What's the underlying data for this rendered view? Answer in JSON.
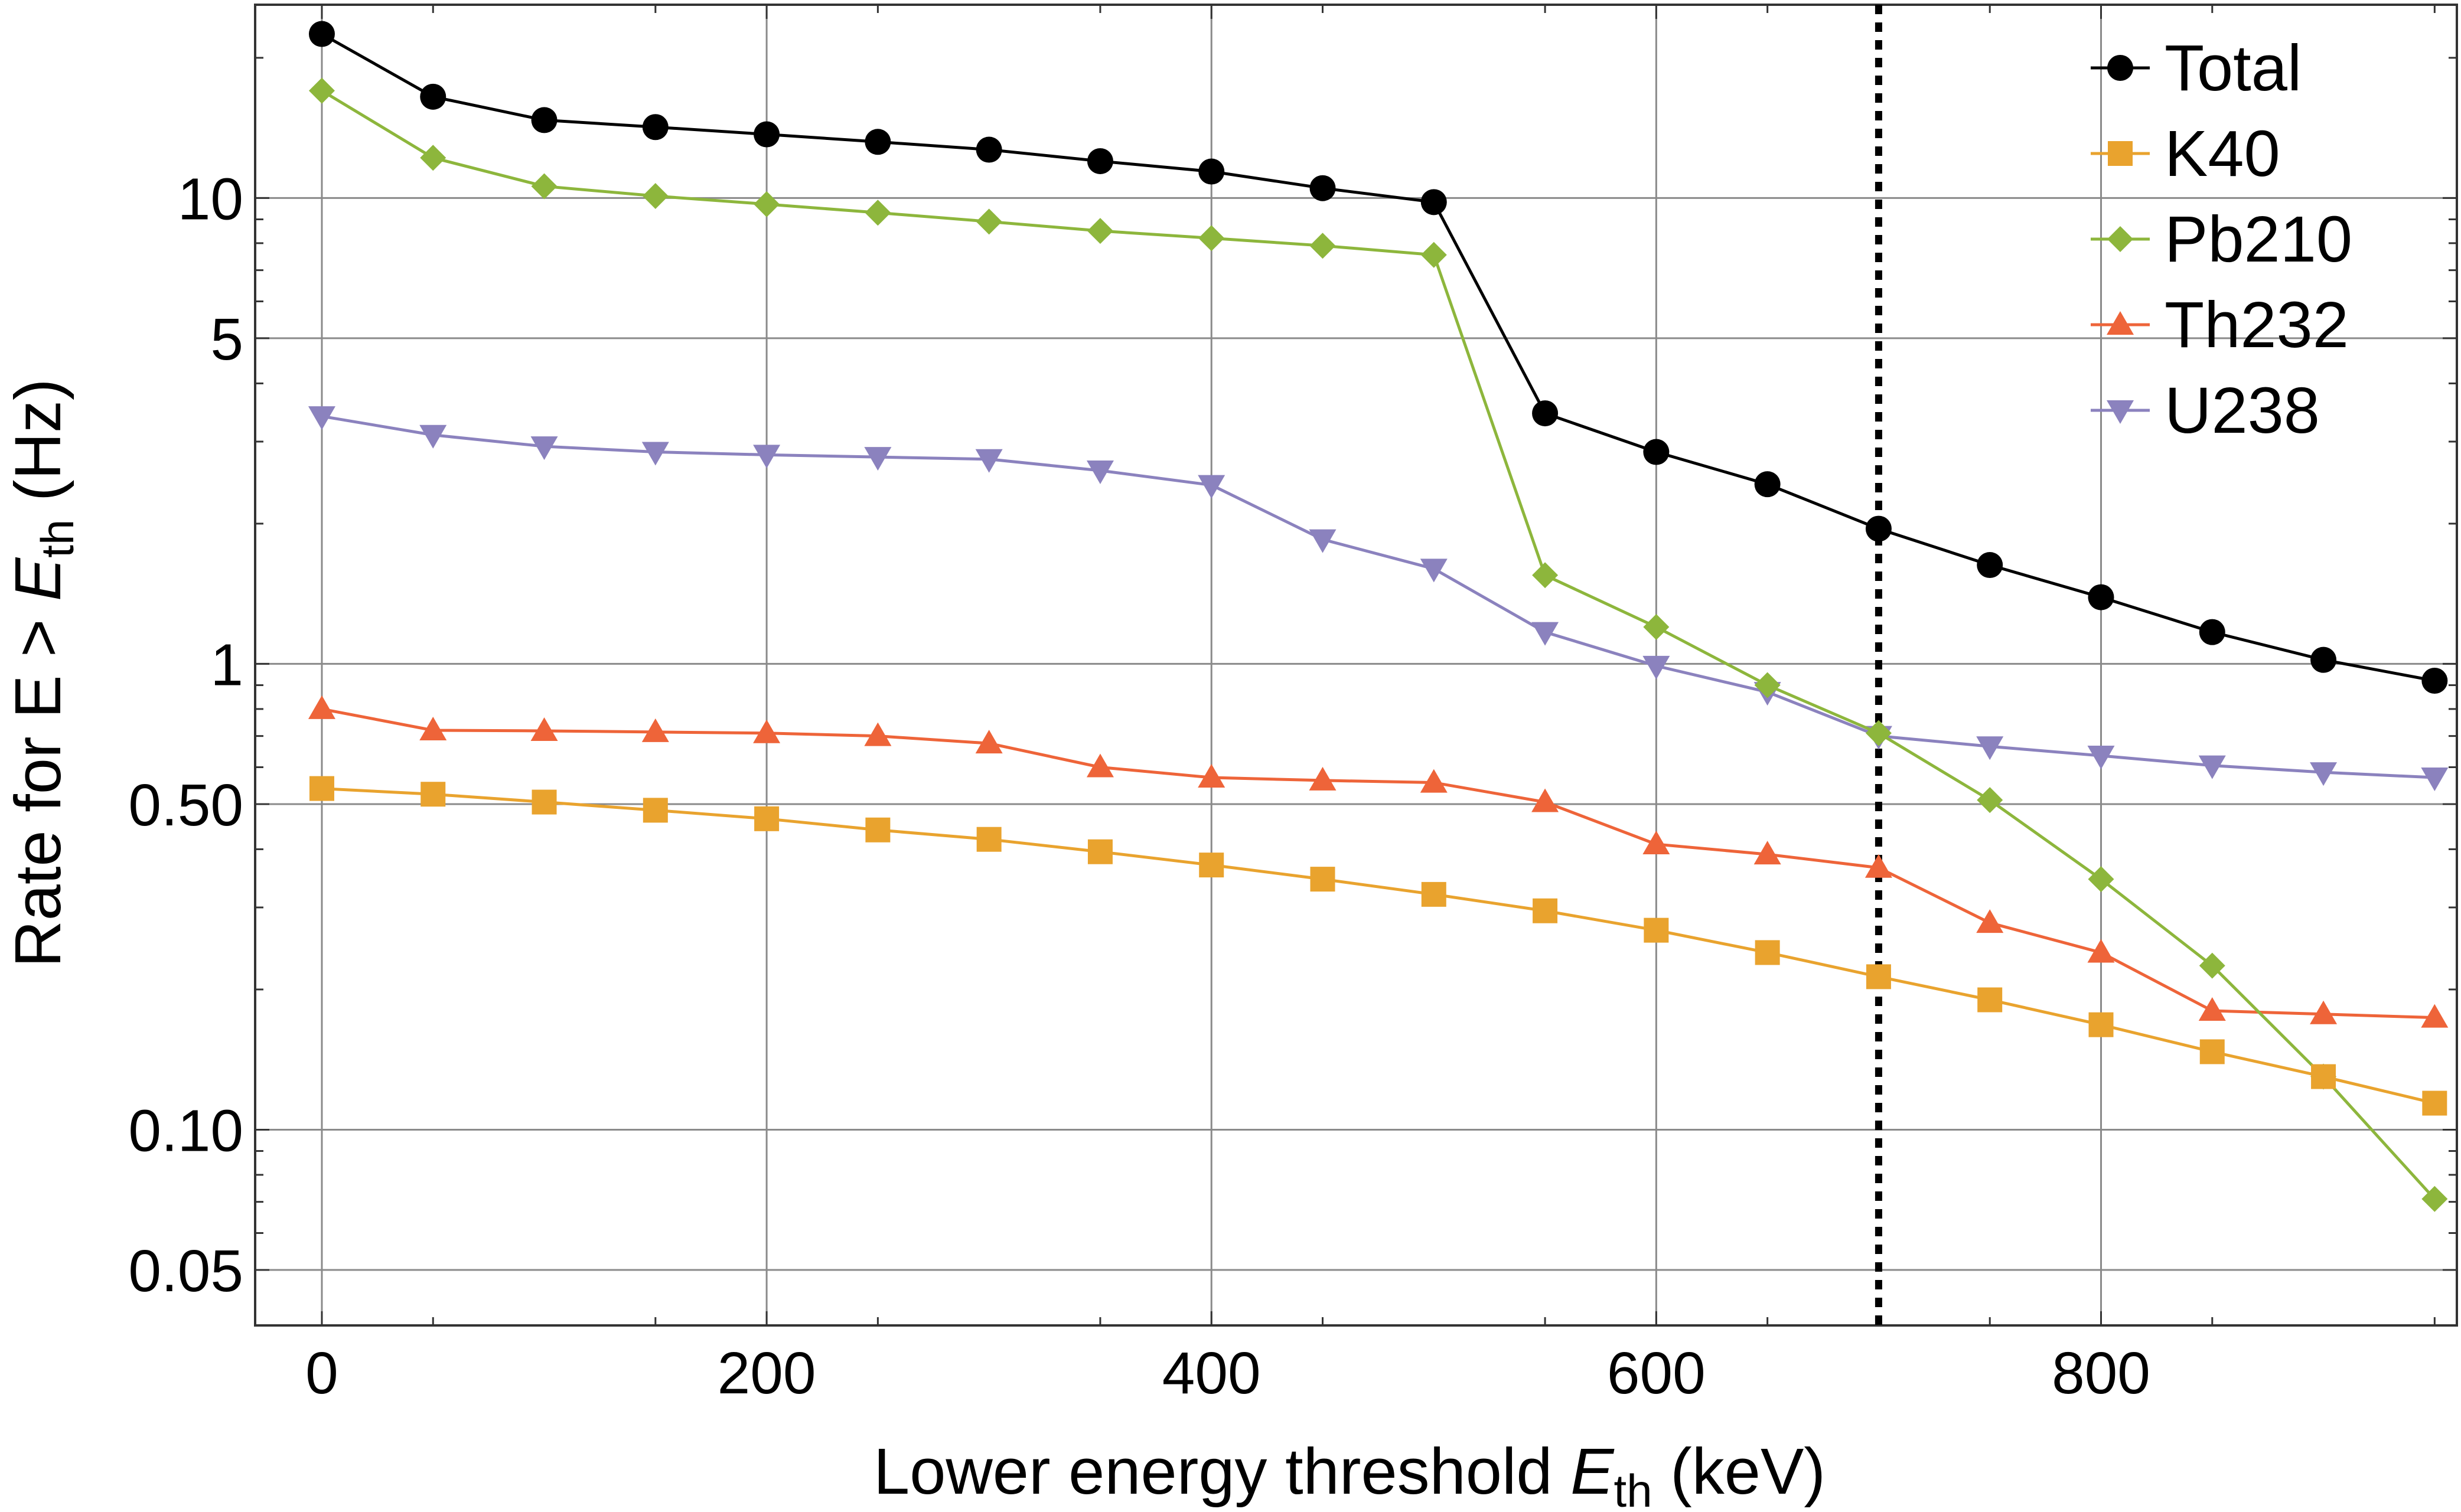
{
  "chart_data": {
    "type": "line",
    "title": "",
    "xlabel": {
      "prefix": "Lower energy threshold ",
      "var": "E",
      "sub": "th",
      "suffix": " (keV)"
    },
    "ylabel": {
      "prefix": "Rate for E > ",
      "var": "E",
      "sub": "th",
      "suffix": " (Hz)"
    },
    "xlim": [
      -30,
      960
    ],
    "ylim": [
      0.038,
      26
    ],
    "yscale": "log",
    "grid": true,
    "legend_position": "top-right",
    "x_ticks": [
      {
        "value": 0,
        "label": "0"
      },
      {
        "value": 200,
        "label": "200"
      },
      {
        "value": 400,
        "label": "400"
      },
      {
        "value": 600,
        "label": "600"
      },
      {
        "value": 800,
        "label": "800"
      }
    ],
    "y_ticks": [
      {
        "value": 0.05,
        "label": "0.05"
      },
      {
        "value": 0.1,
        "label": "0.10"
      },
      {
        "value": 0.5,
        "label": "0.50"
      },
      {
        "value": 1,
        "label": "1"
      },
      {
        "value": 5,
        "label": "5"
      },
      {
        "value": 10,
        "label": "10"
      }
    ],
    "threshold_line": {
      "x": 700,
      "style": "dotted"
    },
    "x": [
      0,
      50,
      100,
      150,
      200,
      250,
      300,
      350,
      400,
      450,
      500,
      550,
      600,
      650,
      700,
      750,
      800,
      850,
      900,
      950
    ],
    "series": [
      {
        "name": "Total",
        "color": "#000000",
        "marker": "circle",
        "values": [
          22.5,
          16.5,
          14.7,
          14.2,
          13.7,
          13.2,
          12.7,
          12.0,
          11.4,
          10.5,
          9.8,
          3.45,
          2.85,
          2.43,
          1.95,
          1.63,
          1.39,
          1.17,
          1.02,
          0.92
        ]
      },
      {
        "name": "K40",
        "color": "#E9A32E",
        "marker": "square",
        "values": [
          0.54,
          0.525,
          0.505,
          0.485,
          0.465,
          0.44,
          0.42,
          0.395,
          0.37,
          0.345,
          0.32,
          0.295,
          0.268,
          0.24,
          0.213,
          0.19,
          0.168,
          0.147,
          0.13,
          0.114
        ]
      },
      {
        "name": "Pb210",
        "color": "#8DB63C",
        "marker": "diamond",
        "values": [
          17.0,
          12.2,
          10.6,
          10.1,
          9.7,
          9.3,
          8.9,
          8.5,
          8.2,
          7.9,
          7.55,
          1.55,
          1.2,
          0.9,
          0.71,
          0.51,
          0.345,
          0.225,
          0.13,
          0.071
        ]
      },
      {
        "name": "Th232",
        "color": "#EE6439",
        "marker": "triangle-up",
        "values": [
          0.8,
          0.72,
          0.718,
          0.714,
          0.71,
          0.7,
          0.675,
          0.6,
          0.57,
          0.562,
          0.556,
          0.505,
          0.41,
          0.39,
          0.365,
          0.278,
          0.24,
          0.18,
          0.177,
          0.174
        ]
      },
      {
        "name": "U238",
        "color": "#8B82BE",
        "marker": "triangle-down",
        "values": [
          3.4,
          3.1,
          2.93,
          2.85,
          2.81,
          2.78,
          2.75,
          2.6,
          2.42,
          1.85,
          1.6,
          1.17,
          0.99,
          0.87,
          0.7,
          0.665,
          0.635,
          0.605,
          0.585,
          0.57
        ]
      }
    ]
  }
}
